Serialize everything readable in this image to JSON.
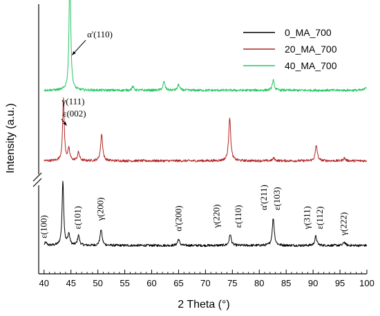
{
  "chart_data": {
    "type": "line",
    "title": "",
    "xlabel": "2 Theta (°)",
    "ylabel": "Intensity (a.u.)",
    "xlim": [
      39,
      100
    ],
    "x_ticks": [
      40,
      45,
      50,
      55,
      60,
      65,
      70,
      75,
      80,
      85,
      90,
      95,
      100
    ],
    "y_ticks_shown": false,
    "axis_break": true,
    "legend_placement": "top-right",
    "grid": false,
    "series": [
      {
        "name": "0_MA_700",
        "color": "#000000",
        "offset": 0,
        "peaks": [
          {
            "x": 40.3,
            "h": 0.4
          },
          {
            "x": 43.5,
            "h": 9.2
          },
          {
            "x": 44.6,
            "h": 1.6
          },
          {
            "x": 46.4,
            "h": 1.4
          },
          {
            "x": 50.6,
            "h": 2.3
          },
          {
            "x": 65.0,
            "h": 0.9
          },
          {
            "x": 74.6,
            "h": 1.6
          },
          {
            "x": 82.6,
            "h": 3.9
          },
          {
            "x": 90.5,
            "h": 1.3
          },
          {
            "x": 95.8,
            "h": 0.5
          }
        ]
      },
      {
        "name": "20_MA_700",
        "color": "#b22222",
        "offset": 12.0,
        "peaks": [
          {
            "x": 43.6,
            "h": 8.8
          },
          {
            "x": 44.6,
            "h": 1.6
          },
          {
            "x": 46.4,
            "h": 1.2
          },
          {
            "x": 50.7,
            "h": 3.8
          },
          {
            "x": 74.5,
            "h": 6.2
          },
          {
            "x": 82.7,
            "h": 0.4
          },
          {
            "x": 90.6,
            "h": 2.2
          },
          {
            "x": 95.8,
            "h": 0.4
          }
        ]
      },
      {
        "name": "40_MA_700",
        "color": "#22c55e",
        "offset": 22.0,
        "peaks": [
          {
            "x": 44.8,
            "h": 17.5
          },
          {
            "x": 56.5,
            "h": 0.5
          },
          {
            "x": 62.3,
            "h": 1.2
          },
          {
            "x": 65.0,
            "h": 0.8
          },
          {
            "x": 82.6,
            "h": 1.4
          },
          {
            "x": 99.8,
            "h": 0.5
          }
        ]
      }
    ],
    "annotations": [
      {
        "text": "α'(110)",
        "x": 48.0,
        "y": 29.5,
        "rotate": false,
        "arrow_to_x": 45.2,
        "arrow_to_y": 27.0
      },
      {
        "text": "γ(111)",
        "x": 43.3,
        "y": 20.0,
        "rotate": false
      },
      {
        "text": "ε(002)",
        "x": 43.5,
        "y": 18.3,
        "rotate": false,
        "arrow_to_x": 44.2,
        "arrow_to_y": 17.0
      },
      {
        "text": "ε(100)",
        "x": 40.5,
        "y": 1.0,
        "rotate": true
      },
      {
        "text": "ε(101)",
        "x": 46.8,
        "y": 2.3,
        "rotate": true
      },
      {
        "text": "γ(200)",
        "x": 51.0,
        "y": 3.5,
        "rotate": true
      },
      {
        "text": "α'(200)",
        "x": 65.5,
        "y": 2.0,
        "rotate": true
      },
      {
        "text": "γ(220)",
        "x": 72.6,
        "y": 2.5,
        "rotate": true
      },
      {
        "text": "ε(110)",
        "x": 76.6,
        "y": 2.5,
        "rotate": true
      },
      {
        "text": "α'(211)",
        "x": 81.4,
        "y": 5.0,
        "rotate": true
      },
      {
        "text": "ε(103)",
        "x": 83.8,
        "y": 5.0,
        "rotate": true
      },
      {
        "text": "γ(311)",
        "x": 89.4,
        "y": 2.3,
        "rotate": true
      },
      {
        "text": "ε(112)",
        "x": 91.8,
        "y": 2.3,
        "rotate": true
      },
      {
        "text": "γ(222)",
        "x": 96.2,
        "y": 1.4,
        "rotate": true
      }
    ]
  }
}
